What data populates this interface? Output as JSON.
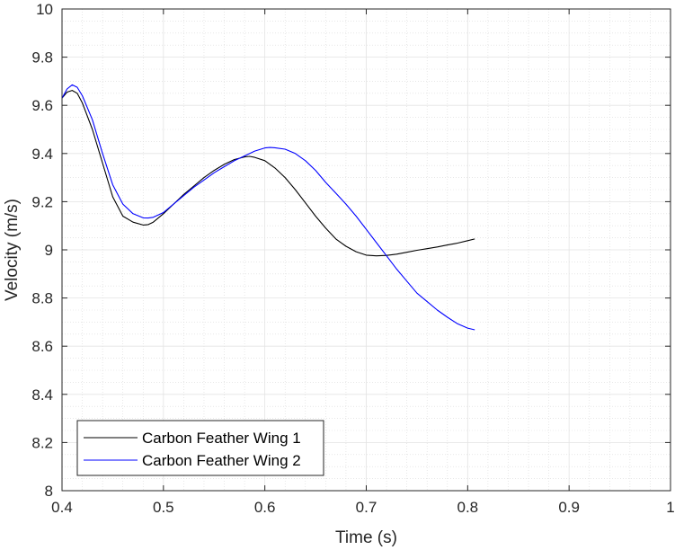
{
  "chart_data": {
    "type": "line",
    "title": "",
    "xlabel": "Time (s)",
    "ylabel": "Velocity (m/s)",
    "xlim": [
      0.4,
      1.0
    ],
    "ylim": [
      8,
      10
    ],
    "xticks": [
      0.4,
      0.5,
      0.6,
      0.7,
      0.8,
      0.9,
      1.0
    ],
    "xtick_labels": [
      "0.4",
      "0.5",
      "0.6",
      "0.7",
      "0.8",
      "0.9",
      "1"
    ],
    "yticks": [
      8,
      8.2,
      8.4,
      8.6,
      8.8,
      9,
      9.2,
      9.4,
      9.6,
      9.8,
      10
    ],
    "ytick_labels": [
      "8",
      "8.2",
      "8.4",
      "8.6",
      "8.8",
      "9",
      "9.2",
      "9.4",
      "9.6",
      "9.8",
      "10"
    ],
    "grid": "major and minor, dotted",
    "legend_position": "bottom-left",
    "series": [
      {
        "name": "Carbon Feather Wing 1",
        "color": "#000000",
        "x": [
          0.4,
          0.405,
          0.41,
          0.415,
          0.42,
          0.43,
          0.44,
          0.45,
          0.46,
          0.47,
          0.48,
          0.485,
          0.49,
          0.5,
          0.51,
          0.52,
          0.53,
          0.54,
          0.55,
          0.56,
          0.57,
          0.58,
          0.585,
          0.59,
          0.6,
          0.61,
          0.62,
          0.63,
          0.64,
          0.65,
          0.66,
          0.67,
          0.68,
          0.69,
          0.7,
          0.71,
          0.72,
          0.73,
          0.74,
          0.75,
          0.76,
          0.77,
          0.78,
          0.79,
          0.8,
          0.807
        ],
        "y": [
          9.63,
          9.655,
          9.662,
          9.65,
          9.61,
          9.5,
          9.36,
          9.22,
          9.14,
          9.115,
          9.103,
          9.105,
          9.115,
          9.15,
          9.19,
          9.23,
          9.265,
          9.3,
          9.33,
          9.355,
          9.375,
          9.386,
          9.388,
          9.384,
          9.37,
          9.34,
          9.3,
          9.25,
          9.195,
          9.14,
          9.09,
          9.045,
          9.015,
          8.992,
          8.978,
          8.975,
          8.977,
          8.982,
          8.99,
          8.998,
          9.005,
          9.012,
          9.02,
          9.028,
          9.038,
          9.045
        ]
      },
      {
        "name": "Carbon Feather Wing 2",
        "color": "#0000ff",
        "x": [
          0.4,
          0.405,
          0.41,
          0.415,
          0.42,
          0.43,
          0.44,
          0.45,
          0.46,
          0.47,
          0.48,
          0.485,
          0.49,
          0.5,
          0.51,
          0.52,
          0.53,
          0.54,
          0.55,
          0.56,
          0.57,
          0.58,
          0.59,
          0.6,
          0.605,
          0.61,
          0.62,
          0.63,
          0.64,
          0.65,
          0.66,
          0.67,
          0.68,
          0.69,
          0.7,
          0.71,
          0.72,
          0.73,
          0.74,
          0.75,
          0.76,
          0.77,
          0.78,
          0.79,
          0.8,
          0.807
        ],
        "y": [
          9.63,
          9.668,
          9.685,
          9.675,
          9.64,
          9.54,
          9.4,
          9.27,
          9.19,
          9.15,
          9.133,
          9.132,
          9.135,
          9.155,
          9.19,
          9.225,
          9.26,
          9.29,
          9.32,
          9.345,
          9.37,
          9.39,
          9.41,
          9.423,
          9.425,
          9.424,
          9.418,
          9.4,
          9.37,
          9.33,
          9.28,
          9.235,
          9.19,
          9.14,
          9.085,
          9.03,
          8.975,
          8.92,
          8.87,
          8.82,
          8.785,
          8.75,
          8.72,
          8.693,
          8.675,
          8.668
        ]
      }
    ]
  }
}
